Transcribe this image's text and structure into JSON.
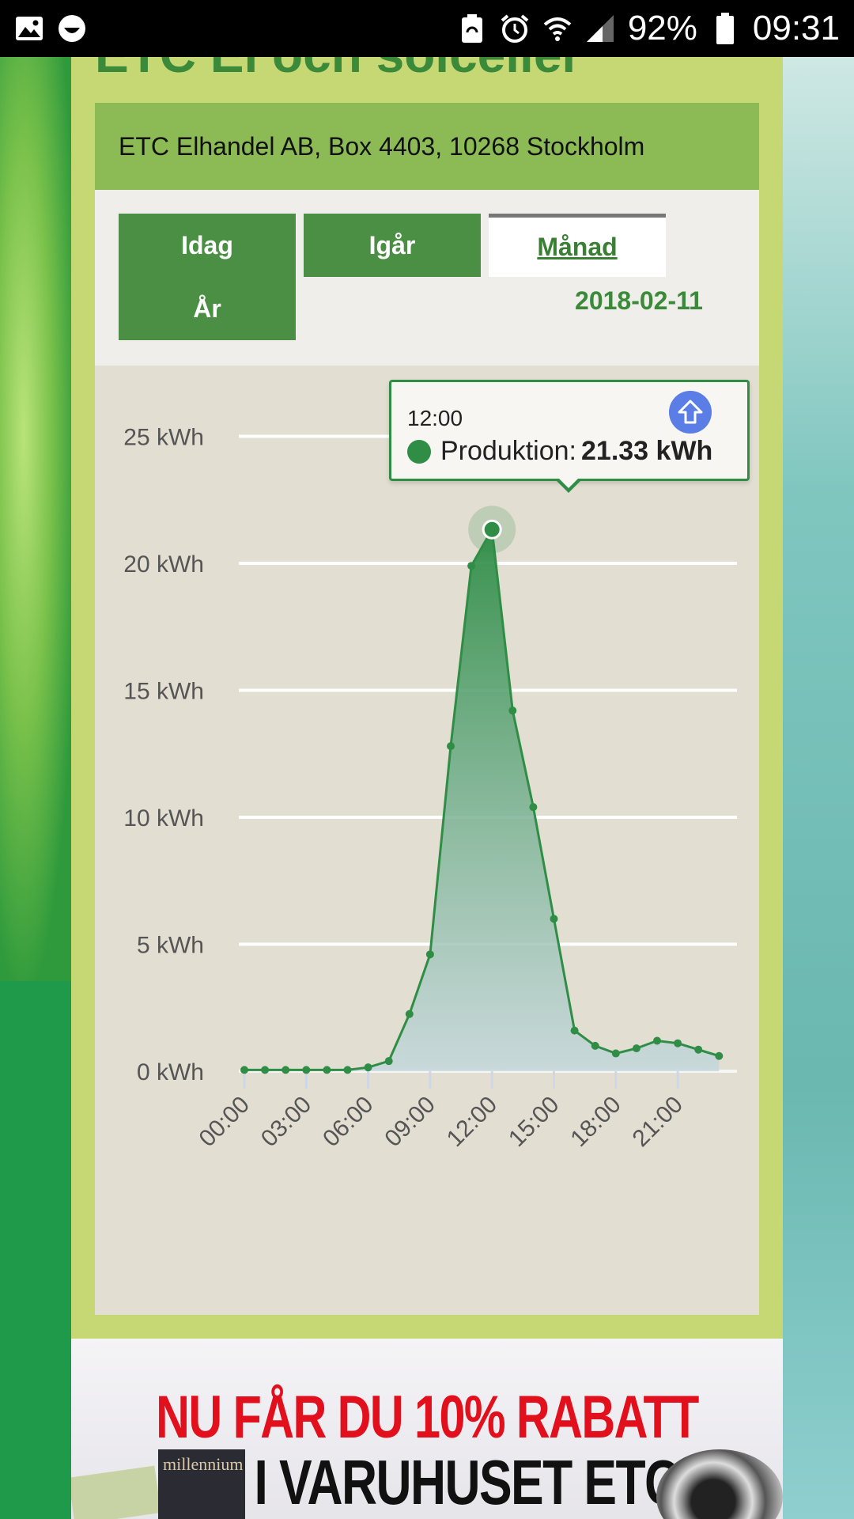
{
  "status_bar": {
    "battery_percent": "92%",
    "time": "09:31",
    "icons": [
      "image-icon",
      "smiley-icon",
      "battery-saver-icon",
      "alarm-icon",
      "wifi-icon",
      "signal-icon",
      "battery-icon"
    ]
  },
  "page": {
    "heading_partial": "ETC El och solceller",
    "address": "ETC Elhandel AB, Box 4403, 10268 Stockholm"
  },
  "tabs": {
    "items": [
      "Idag",
      "Igår",
      "Månad",
      "År"
    ],
    "active": "Månad",
    "date": "2018-02-11"
  },
  "tooltip": {
    "time": "12:00",
    "series_label": "Produktion:",
    "value": "21.33 kWh"
  },
  "chart_data": {
    "type": "area",
    "ylabel": "",
    "xlabel": "",
    "y_ticks": [
      "0 kWh",
      "5 kWh",
      "10 kWh",
      "15 kWh",
      "20 kWh",
      "25 kWh"
    ],
    "ylim": [
      0,
      25
    ],
    "x_ticks": [
      "00:00",
      "03:00",
      "06:00",
      "09:00",
      "12:00",
      "15:00",
      "18:00",
      "21:00"
    ],
    "grid": true,
    "series": [
      {
        "name": "Produktion",
        "color": "#2f8d46",
        "x": [
          "00:00",
          "01:00",
          "02:00",
          "03:00",
          "04:00",
          "05:00",
          "06:00",
          "07:00",
          "08:00",
          "09:00",
          "10:00",
          "11:00",
          "12:00",
          "13:00",
          "14:00",
          "15:00",
          "16:00",
          "17:00",
          "18:00",
          "19:00",
          "20:00",
          "21:00",
          "22:00",
          "23:00"
        ],
        "values": [
          0.05,
          0.05,
          0.05,
          0.05,
          0.05,
          0.05,
          0.15,
          0.4,
          2.25,
          4.6,
          12.8,
          19.9,
          21.33,
          14.2,
          10.4,
          6.0,
          1.6,
          1.0,
          0.7,
          0.9,
          1.2,
          1.1,
          0.85,
          0.6
        ]
      }
    ],
    "highlighted_point": {
      "x": "12:00",
      "value": 21.33
    }
  },
  "banner": {
    "line1": "NU FÅR DU 10% RABATT",
    "line2": "I VARUHUSET ETC",
    "book_title": "millennium"
  }
}
